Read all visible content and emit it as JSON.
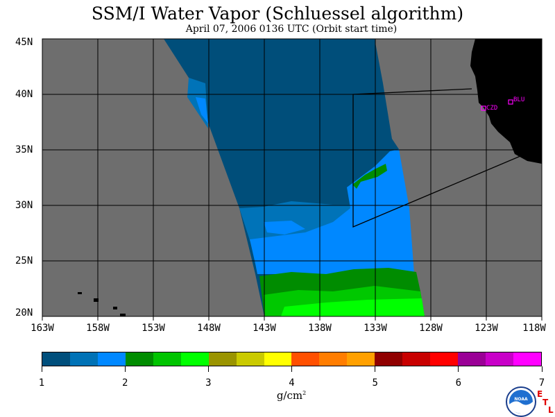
{
  "header": {
    "title": "SSM/I Water Vapor (Schluessel algorithm)",
    "subtitle": "April 07, 2006  0136 UTC  (Orbit start time)"
  },
  "map": {
    "lat_labels": [
      "45N",
      "40N",
      "35N",
      "30N",
      "25N",
      "20N"
    ],
    "lon_labels": [
      "163W",
      "158W",
      "153W",
      "148W",
      "143W",
      "138W",
      "133W",
      "128W",
      "123W",
      "118W"
    ],
    "stations": [
      {
        "name": "CZD",
        "color": "#ff00ff"
      },
      {
        "name": "BLU",
        "color": "#ff00ff"
      }
    ],
    "colors": {
      "ocean_nodata": "#6e6e6e",
      "land": "#000000",
      "swath_low": "#004e7a",
      "swath_mid": "#0073b8",
      "swath_high": "#0088ff",
      "green_dark": "#008c00",
      "green_mid": "#00c800",
      "green_bright": "#00ff00"
    }
  },
  "colorbar": {
    "colors": [
      "#004f7c",
      "#0072b6",
      "#0088ff",
      "#008c00",
      "#00c400",
      "#00ff00",
      "#9a9400",
      "#caca00",
      "#ffff00",
      "#ff5000",
      "#ff7d00",
      "#ffa000",
      "#900000",
      "#c80000",
      "#ff0000",
      "#9a0096",
      "#c800c8",
      "#ff00ff"
    ],
    "tick_labels": [
      "1",
      "2",
      "3",
      "4",
      "5",
      "6",
      "7"
    ],
    "units": "g/cm",
    "units_sup": "2"
  },
  "logo": {
    "name": "NOAA",
    "etl_letters": [
      "E",
      "T",
      "L"
    ]
  }
}
